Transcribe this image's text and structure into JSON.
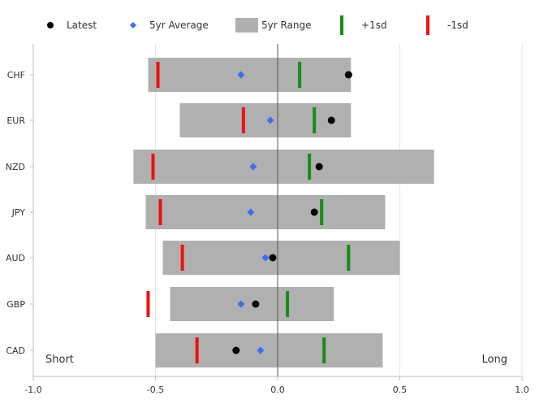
{
  "chart_data": {
    "type": "range-dot",
    "categories": [
      "CHF",
      "EUR",
      "NZD",
      "JPY",
      "AUD",
      "GBP",
      "CAD"
    ],
    "xlim": [
      -1.0,
      1.0
    ],
    "x_ticks": [
      -1.0,
      -0.5,
      0.0,
      0.5,
      1.0
    ],
    "x_tick_labels": [
      "-1.0",
      "-0.5",
      "0.0",
      "0.5",
      "1.0"
    ],
    "grid": true,
    "legend_position": "top",
    "legend": [
      {
        "key": "latest",
        "label": "Latest",
        "marker": "circle",
        "color": "#000000"
      },
      {
        "key": "avg",
        "label": "5yr Average",
        "marker": "diamond",
        "color": "#3d6cf0"
      },
      {
        "key": "range",
        "label": "5yr Range",
        "marker": "rect",
        "color": "#b0b0b0"
      },
      {
        "key": "plus1sd",
        "label": "+1sd",
        "marker": "vbar",
        "color": "#1a8a1a"
      },
      {
        "key": "minus1sd",
        "label": "-1sd",
        "marker": "vbar",
        "color": "#ee1111"
      }
    ],
    "annotations": {
      "left": "Short",
      "right": "Long"
    },
    "series": {
      "latest": [
        0.29,
        0.22,
        0.17,
        0.15,
        -0.02,
        -0.09,
        -0.17
      ],
      "avg": [
        -0.15,
        -0.03,
        -0.1,
        -0.11,
        -0.05,
        -0.15,
        -0.07
      ],
      "range_min": [
        -0.53,
        -0.4,
        -0.59,
        -0.54,
        -0.47,
        -0.44,
        -0.5
      ],
      "range_max": [
        0.3,
        0.3,
        0.64,
        0.44,
        0.5,
        0.23,
        0.43
      ],
      "plus1sd": [
        0.09,
        0.15,
        0.13,
        0.18,
        0.29,
        0.04,
        0.19
      ],
      "minus1sd": [
        -0.49,
        -0.14,
        -0.51,
        -0.48,
        -0.39,
        -0.53,
        -0.33
      ]
    }
  }
}
